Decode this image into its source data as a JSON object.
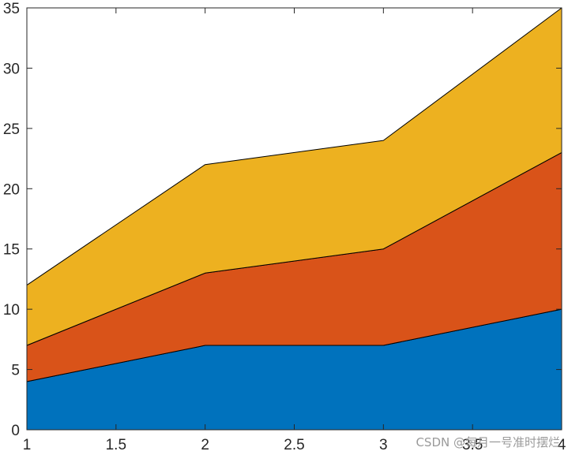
{
  "chart_data": {
    "type": "area",
    "stacked": true,
    "x": [
      1,
      2,
      3,
      4
    ],
    "series": [
      {
        "values": [
          4,
          7,
          7,
          10
        ],
        "color": "#0072BD"
      },
      {
        "values": [
          3,
          6,
          8,
          13
        ],
        "color": "#D95319"
      },
      {
        "values": [
          5,
          9,
          9,
          12
        ],
        "color": "#EDB120"
      }
    ],
    "xlim": [
      1,
      4
    ],
    "ylim": [
      0,
      35
    ],
    "xticks": [
      "1",
      "1.5",
      "2",
      "2.5",
      "3",
      "3.5",
      "4"
    ],
    "yticks": [
      "0",
      "5",
      "10",
      "15",
      "20",
      "25",
      "30",
      "35"
    ],
    "grid": false,
    "title": "",
    "xlabel": "",
    "ylabel": ""
  },
  "watermark": "CSDN @每月一号准时摆烂"
}
